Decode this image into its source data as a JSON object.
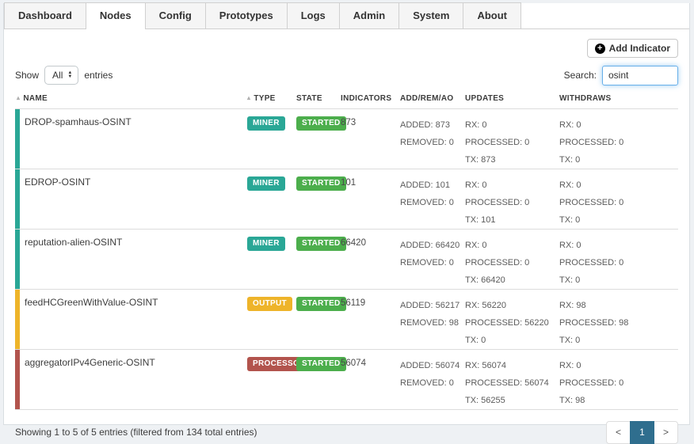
{
  "tabs": [
    {
      "label": "Dashboard",
      "active": false
    },
    {
      "label": "Nodes",
      "active": true
    },
    {
      "label": "Config",
      "active": false
    },
    {
      "label": "Prototypes",
      "active": false
    },
    {
      "label": "Logs",
      "active": false
    },
    {
      "label": "Admin",
      "active": false
    },
    {
      "label": "System",
      "active": false
    },
    {
      "label": "About",
      "active": false
    }
  ],
  "toolbar": {
    "add_indicator_label": "Add Indicator",
    "add_icon_char": "+"
  },
  "controls": {
    "show_label": "Show",
    "page_length_value": "All",
    "entries_label": "entries",
    "select_up_arrow": "▲",
    "select_down_arrow": "▼",
    "search_label": "Search:",
    "search_value": "osint"
  },
  "table": {
    "sort_icon_char": "▴",
    "columns": [
      {
        "label": "NAME",
        "sortable": true
      },
      {
        "label": "TYPE",
        "sortable": true
      },
      {
        "label": "STATE",
        "sortable": false
      },
      {
        "label": "INDICATORS",
        "sortable": false
      },
      {
        "label": "ADD/REM/AO",
        "sortable": false
      },
      {
        "label": "UPDATES",
        "sortable": false
      },
      {
        "label": "WITHDRAWS",
        "sortable": false
      }
    ],
    "rows": [
      {
        "name": "DROP-spamhaus-OSINT",
        "type": "MINER",
        "type_color": "#2aa796",
        "state": "STARTED",
        "indicators": "873",
        "add_rem": [
          "ADDED: 873",
          "REMOVED: 0"
        ],
        "updates": [
          "RX: 0",
          "PROCESSED: 0",
          "TX: 873"
        ],
        "withdraws": [
          "RX: 0",
          "PROCESSED: 0",
          "TX: 0"
        ]
      },
      {
        "name": "EDROP-OSINT",
        "type": "MINER",
        "type_color": "#2aa796",
        "state": "STARTED",
        "indicators": "101",
        "add_rem": [
          "ADDED: 101",
          "REMOVED: 0"
        ],
        "updates": [
          "RX: 0",
          "PROCESSED: 0",
          "TX: 101"
        ],
        "withdraws": [
          "RX: 0",
          "PROCESSED: 0",
          "TX: 0"
        ]
      },
      {
        "name": "reputation-alien-OSINT",
        "type": "MINER",
        "type_color": "#2aa796",
        "state": "STARTED",
        "indicators": "66420",
        "add_rem": [
          "ADDED: 66420",
          "REMOVED: 0"
        ],
        "updates": [
          "RX: 0",
          "PROCESSED: 0",
          "TX: 66420"
        ],
        "withdraws": [
          "RX: 0",
          "PROCESSED: 0",
          "TX: 0"
        ]
      },
      {
        "name": "feedHCGreenWithValue-OSINT",
        "type": "OUTPUT",
        "type_color": "#eeb42a",
        "state": "STARTED",
        "indicators": "56119",
        "add_rem": [
          "ADDED: 56217",
          "REMOVED: 98"
        ],
        "updates": [
          "RX: 56220",
          "PROCESSED: 56220",
          "TX: 0"
        ],
        "withdraws": [
          "RX: 98",
          "PROCESSED: 98",
          "TX: 0"
        ]
      },
      {
        "name": "aggregatorIPv4Generic-OSINT",
        "type": "PROCESSOR",
        "type_color": "#b2544d",
        "state": "STARTED",
        "indicators": "56074",
        "add_rem": [
          "ADDED: 56074",
          "REMOVED: 0"
        ],
        "updates": [
          "RX: 56074",
          "PROCESSED: 56074",
          "TX: 56255"
        ],
        "withdraws": [
          "RX: 0",
          "PROCESSED: 0",
          "TX: 98"
        ]
      }
    ]
  },
  "footer": {
    "summary": "Showing 1 to 5 of 5 entries (filtered from 134 total entries)",
    "pagination": {
      "prev": "<",
      "page": "1",
      "next": ">"
    }
  },
  "colors": {
    "miner": "#2aa796",
    "output": "#eeb42a",
    "processor": "#b2544d",
    "state_started": "#4cae4c",
    "pagination_active": "#2f6e8e",
    "search_focus_border": "#66afe9"
  }
}
